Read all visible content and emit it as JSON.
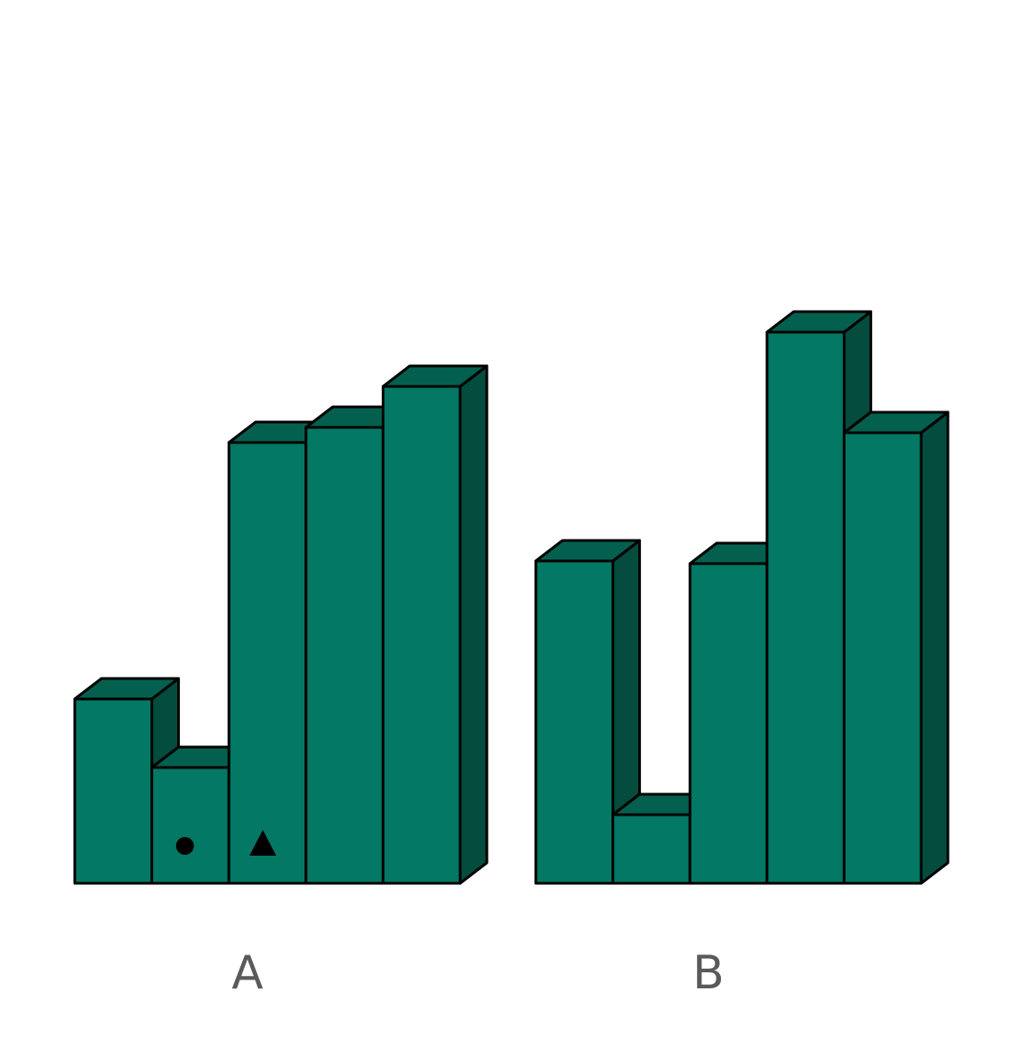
{
  "figure": {
    "colors": {
      "front": "#037864",
      "top": "#03604e",
      "side": "#034c3e",
      "outline": "#000000",
      "marker": "#000000",
      "label": "#5a5a5a"
    },
    "groups": [
      {
        "label": "A",
        "columns": [
          {
            "height": 207
          },
          {
            "height": 130,
            "marker": "circle"
          },
          {
            "height": 495,
            "marker": "triangle"
          },
          {
            "height": 512
          },
          {
            "height": 558
          }
        ]
      },
      {
        "label": "B",
        "columns": [
          {
            "height": 362
          },
          {
            "height": 77
          },
          {
            "height": 359
          },
          {
            "height": 619
          },
          {
            "height": 506
          }
        ]
      }
    ]
  }
}
